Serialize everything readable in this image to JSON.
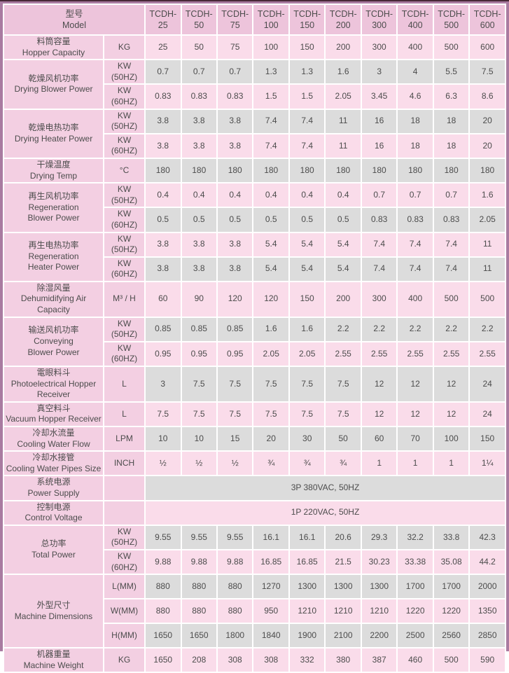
{
  "colors": {
    "outer_border": "#a97ba1",
    "outer_border_dark": "#472837",
    "header_bg": "#edc4db",
    "label_bg": "#f3cfe2",
    "row_pink": "#fadcea",
    "row_grey": "#dcdcdc",
    "grid_gap": "#ffffff",
    "text": "#4c4c4c"
  },
  "table": {
    "header": {
      "model_label": "型号\nModel",
      "models": [
        "TCDH-\n25",
        "TCDH-\n50",
        "TCDH-\n75",
        "TCDH-\n100",
        "TCDH-\n150",
        "TCDH-\n200",
        "TCDH-\n300",
        "TCDH-\n400",
        "TCDH-\n500",
        "TCDH-\n600"
      ]
    },
    "rows": [
      {
        "label": "料筒容量\nHopper Capacity",
        "label_rowspan": 1,
        "unit": "KG",
        "shade": "pink",
        "values": [
          "25",
          "50",
          "75",
          "100",
          "150",
          "200",
          "300",
          "400",
          "500",
          "600"
        ]
      },
      {
        "label": "乾燥风机功率\nDrying Blower Power",
        "label_rowspan": 2,
        "unit": "KW\n(50HZ)",
        "shade": "grey",
        "values": [
          "0.7",
          "0.7",
          "0.7",
          "1.3",
          "1.3",
          "1.6",
          "3",
          "4",
          "5.5",
          "7.5"
        ]
      },
      {
        "unit": "KW\n(60HZ)",
        "shade": "pink",
        "values": [
          "0.83",
          "0.83",
          "0.83",
          "1.5",
          "1.5",
          "2.05",
          "3.45",
          "4.6",
          "6.3",
          "8.6"
        ]
      },
      {
        "label": "乾燥电热功率\nDrying Heater Power",
        "label_rowspan": 2,
        "unit": "KW\n(50HZ)",
        "shade": "grey",
        "values": [
          "3.8",
          "3.8",
          "3.8",
          "7.4",
          "7.4",
          "11",
          "16",
          "18",
          "18",
          "20"
        ]
      },
      {
        "unit": "KW\n(60HZ)",
        "shade": "pink",
        "values": [
          "3.8",
          "3.8",
          "3.8",
          "7.4",
          "7.4",
          "11",
          "16",
          "18",
          "18",
          "20"
        ]
      },
      {
        "label": "干燥温度\nDrying Temp",
        "label_rowspan": 1,
        "unit": "°C",
        "shade": "grey",
        "values": [
          "180",
          "180",
          "180",
          "180",
          "180",
          "180",
          "180",
          "180",
          "180",
          "180"
        ]
      },
      {
        "label": "再生风机功率\nRegeneration\nBlower Power",
        "label_rowspan": 2,
        "unit": "KW\n(50HZ)",
        "shade": "pink",
        "values": [
          "0.4",
          "0.4",
          "0.4",
          "0.4",
          "0.4",
          "0.4",
          "0.7",
          "0.7",
          "0.7",
          "1.6"
        ]
      },
      {
        "unit": "KW\n(60HZ)",
        "shade": "grey",
        "values": [
          "0.5",
          "0.5",
          "0.5",
          "0.5",
          "0.5",
          "0.5",
          "0.83",
          "0.83",
          "0.83",
          "2.05"
        ]
      },
      {
        "label": "再生电热功率\nRegeneration\nHeater Power",
        "label_rowspan": 2,
        "unit": "KW\n(50HZ)",
        "shade": "pink",
        "values": [
          "3.8",
          "3.8",
          "3.8",
          "5.4",
          "5.4",
          "5.4",
          "7.4",
          "7.4",
          "7.4",
          "11"
        ]
      },
      {
        "unit": "KW\n(60HZ)",
        "shade": "grey",
        "values": [
          "3.8",
          "3.8",
          "3.8",
          "5.4",
          "5.4",
          "5.4",
          "7.4",
          "7.4",
          "7.4",
          "11"
        ]
      },
      {
        "label": "除湿风量\nDehumidifying Air Capacity",
        "label_rowspan": 1,
        "unit": "M³ / H",
        "shade": "pink",
        "values": [
          "60",
          "90",
          "120",
          "120",
          "150",
          "200",
          "300",
          "400",
          "500",
          "500"
        ]
      },
      {
        "label": "输送风机功率\nConveying\nBlower Power",
        "label_rowspan": 2,
        "unit": "KW\n(50HZ)",
        "shade": "grey",
        "values": [
          "0.85",
          "0.85",
          "0.85",
          "1.6",
          "1.6",
          "2.2",
          "2.2",
          "2.2",
          "2.2",
          "2.2"
        ]
      },
      {
        "unit": "KW\n(60HZ)",
        "shade": "pink",
        "values": [
          "0.95",
          "0.95",
          "0.95",
          "2.05",
          "2.05",
          "2.55",
          "2.55",
          "2.55",
          "2.55",
          "2.55"
        ]
      },
      {
        "label": "電眼料斗\nPhotoelectrical Hopper Receiver",
        "label_rowspan": 1,
        "unit": "L",
        "shade": "grey",
        "values": [
          "3",
          "7.5",
          "7.5",
          "7.5",
          "7.5",
          "7.5",
          "12",
          "12",
          "12",
          "24"
        ]
      },
      {
        "label": "真空料斗\nVacuum Hopper Receiver",
        "label_rowspan": 1,
        "unit": "L",
        "shade": "pink",
        "values": [
          "7.5",
          "7.5",
          "7.5",
          "7.5",
          "7.5",
          "7.5",
          "12",
          "12",
          "12",
          "24"
        ]
      },
      {
        "label": "冷却水流量\nCooling Water Flow",
        "label_rowspan": 1,
        "unit": "LPM",
        "shade": "grey",
        "values": [
          "10",
          "10",
          "15",
          "20",
          "30",
          "50",
          "60",
          "70",
          "100",
          "150"
        ]
      },
      {
        "label": "冷却水接管\nCooling Water Pipes Size",
        "label_rowspan": 1,
        "unit": "INCH",
        "shade": "pink",
        "values": [
          "½",
          "½",
          "½",
          "¾",
          "¾",
          "¾",
          "1",
          "1",
          "1",
          "1¼"
        ]
      },
      {
        "label": "系统电源\nPower Supply",
        "label_rowspan": 1,
        "unit": "",
        "shade": "grey",
        "merged": "3P 380VAC, 50HZ"
      },
      {
        "label": "控制电源\nControl Voltage",
        "label_rowspan": 1,
        "unit": "",
        "shade": "pink",
        "merged": "1P 220VAC, 50HZ"
      },
      {
        "label": "总功率\nTotal Power",
        "label_rowspan": 2,
        "unit": "KW\n(50HZ)",
        "shade": "grey",
        "values": [
          "9.55",
          "9.55",
          "9.55",
          "16.1",
          "16.1",
          "20.6",
          "29.3",
          "32.2",
          "33.8",
          "42.3"
        ]
      },
      {
        "unit": "KW\n(60HZ)",
        "shade": "pink",
        "values": [
          "9.88",
          "9.88",
          "9.88",
          "16.85",
          "16.85",
          "21.5",
          "30.23",
          "33.38",
          "35.08",
          "44.2"
        ]
      },
      {
        "label": "外型尺寸\nMachine Dimensions",
        "label_rowspan": 3,
        "unit": "L(MM)",
        "shade": "grey",
        "values": [
          "880",
          "880",
          "880",
          "1270",
          "1300",
          "1300",
          "1300",
          "1700",
          "1700",
          "2000"
        ]
      },
      {
        "unit": "W(MM)",
        "shade": "pink",
        "values": [
          "880",
          "880",
          "880",
          "950",
          "1210",
          "1210",
          "1210",
          "1220",
          "1220",
          "1350"
        ]
      },
      {
        "unit": "H(MM)",
        "shade": "grey",
        "values": [
          "1650",
          "1650",
          "1800",
          "1840",
          "1900",
          "2100",
          "2200",
          "2500",
          "2560",
          "2850"
        ]
      },
      {
        "label": "机器重量\nMachine Weight",
        "label_rowspan": 1,
        "unit": "KG",
        "shade": "pink",
        "values": [
          "1650",
          "208",
          "308",
          "308",
          "332",
          "380",
          "387",
          "460",
          "500",
          "590"
        ]
      }
    ]
  }
}
